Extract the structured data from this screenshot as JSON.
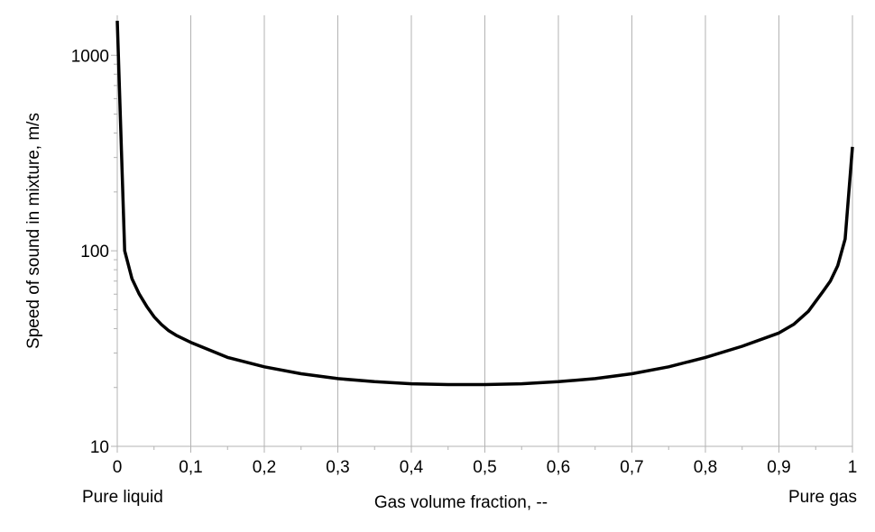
{
  "chart_data": {
    "type": "line",
    "title": "",
    "xlabel": "Gas volume fraction, --",
    "ylabel": "Speed of sound in mixture, m/s",
    "annotations": {
      "left": "Pure liquid",
      "right": "Pure gas"
    },
    "xlim": [
      0,
      1
    ],
    "ylim": [
      10,
      1600
    ],
    "yscale": "log",
    "grid": {
      "x": true,
      "y": false
    },
    "x_ticks": [
      0,
      0.1,
      0.2,
      0.3,
      0.4,
      0.5,
      0.6,
      0.7,
      0.8,
      0.9,
      1
    ],
    "x_tick_labels": [
      "0",
      "0,1",
      "0,2",
      "0,3",
      "0,4",
      "0,5",
      "0,6",
      "0,7",
      "0,8",
      "0,9",
      "1"
    ],
    "y_ticks": [
      10,
      100,
      1000
    ],
    "y_tick_labels": [
      "10",
      "100",
      "1000"
    ],
    "series": [
      {
        "color": "#000000",
        "x": [
          0,
          0.01,
          0.02,
          0.03,
          0.04,
          0.05,
          0.06,
          0.07,
          0.08,
          0.1,
          0.15,
          0.2,
          0.25,
          0.3,
          0.35,
          0.4,
          0.45,
          0.5,
          0.55,
          0.6,
          0.65,
          0.7,
          0.75,
          0.8,
          0.85,
          0.9,
          0.92,
          0.94,
          0.96,
          0.97,
          0.98,
          0.99,
          1.0
        ],
        "values": [
          1500,
          100,
          72,
          60,
          52,
          46,
          42,
          39,
          37,
          34,
          28.5,
          25.5,
          23.5,
          22.2,
          21.4,
          20.9,
          20.7,
          20.7,
          20.9,
          21.4,
          22.2,
          23.5,
          25.5,
          28.5,
          32.5,
          38,
          42,
          49,
          62,
          70,
          84,
          115,
          340
        ]
      }
    ]
  }
}
